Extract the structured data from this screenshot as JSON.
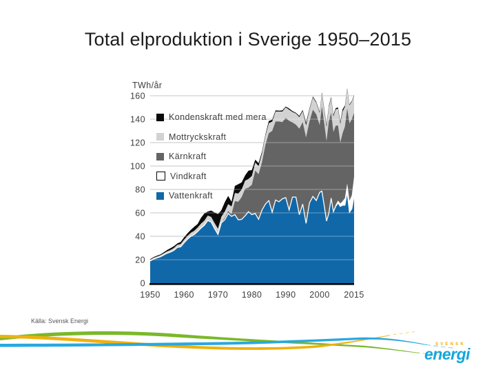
{
  "slide": {
    "title": "Total elproduktion i Sverige 1950–2015"
  },
  "source_note": "Källa: Svensk Energi",
  "logo": {
    "top": "SVENSK",
    "name": "energi"
  },
  "colors": {
    "gridline": "#a0a0a0",
    "axis_text": "#3d3d3d",
    "axis_line": "#000000",
    "title_text": "#1c1c1c",
    "source_text": "#555555",
    "wave_green": "#7ab829",
    "wave_yellow": "#eeb111",
    "wave_blue": "#29a8df",
    "logo_cyan": "#14a6dc",
    "logo_orange": "#f6a800"
  },
  "chart_data": {
    "type": "area",
    "stacked": true,
    "unit_label": "TWh/år",
    "ylim": [
      0,
      160
    ],
    "ytick_step": 20,
    "xticks": [
      1950,
      1960,
      1970,
      1980,
      1990,
      2000,
      2015
    ],
    "grid": true,
    "legend_position": "upper-left-inside",
    "legend_order_top_to_bottom": [
      "Kondenskraft med mera",
      "Mottryckskraft",
      "Kärnkraft",
      "Vindkraft",
      "Vattenkraft"
    ],
    "x": [
      1950,
      1951,
      1952,
      1953,
      1954,
      1955,
      1956,
      1957,
      1958,
      1959,
      1960,
      1961,
      1962,
      1963,
      1964,
      1965,
      1966,
      1967,
      1968,
      1969,
      1970,
      1971,
      1972,
      1973,
      1974,
      1975,
      1976,
      1977,
      1978,
      1979,
      1980,
      1981,
      1982,
      1983,
      1984,
      1985,
      1986,
      1987,
      1988,
      1989,
      1990,
      1991,
      1992,
      1993,
      1994,
      1995,
      1996,
      1997,
      1998,
      1999,
      2000,
      2001,
      2002,
      2003,
      2004,
      2005,
      2006,
      2007,
      2008,
      2009,
      2010,
      2011,
      2012,
      2013,
      2014,
      2015
    ],
    "series": [
      {
        "name": "Vattenkraft",
        "color": "#1168a8",
        "values": [
          18.9,
          20.5,
          21.5,
          22.5,
          24,
          25.5,
          26.5,
          28,
          30.5,
          31,
          34.5,
          37.5,
          40,
          41.5,
          44,
          47,
          49.5,
          53.5,
          52,
          46.5,
          41.5,
          51.5,
          54,
          59.5,
          57,
          58.5,
          54,
          54.5,
          57.5,
          61,
          58.5,
          59.5,
          54.5,
          62.5,
          67.5,
          70.5,
          60.5,
          71,
          69.5,
          72,
          73,
          62.5,
          73.5,
          73.5,
          58.5,
          67.5,
          51,
          68.5,
          74,
          70.5,
          77.5,
          78.5,
          66,
          53,
          59.5,
          72.5,
          61,
          65.5,
          68.5,
          65.5,
          66.5,
          66.5,
          78,
          60.5,
          63.5,
          74.5
        ]
      },
      {
        "name": "Vindkraft",
        "color": "#ffffff",
        "values": [
          0,
          0,
          0,
          0,
          0,
          0,
          0,
          0,
          0,
          0,
          0,
          0,
          0,
          0,
          0,
          0,
          0,
          0,
          0,
          0,
          0,
          0,
          0,
          0,
          0,
          0,
          0,
          0,
          0,
          0,
          0,
          0,
          0,
          0,
          0,
          0,
          0,
          0,
          0,
          0,
          0.1,
          0.1,
          0.2,
          0.3,
          0.3,
          0.4,
          0.4,
          0.5,
          0.6,
          0.6,
          0.5,
          0.5,
          0.6,
          0.7,
          0.9,
          0.9,
          1,
          1.4,
          2,
          2.5,
          3.5,
          6.1,
          7.2,
          9.9,
          11.5,
          16.3
        ]
      },
      {
        "name": "Kärnkraft",
        "color": "#646464",
        "values": [
          0,
          0,
          0,
          0,
          0,
          0,
          0,
          0,
          0,
          0,
          0,
          0,
          0,
          0,
          0,
          0,
          0,
          0,
          0,
          0,
          0,
          0,
          1.5,
          2,
          2,
          11.5,
          15.5,
          19,
          23,
          20.5,
          25.5,
          36.5,
          38.5,
          41,
          50.5,
          57.5,
          69.5,
          67,
          68.5,
          65.5,
          68,
          76,
          63.5,
          61.5,
          73,
          69.5,
          73,
          69,
          73.5,
          73,
          57,
          72,
          69.5,
          67.5,
          77.5,
          72,
          67,
          67.5,
          64,
          52,
          58,
          61,
          64,
          66,
          65,
          54.5
        ]
      },
      {
        "name": "Mottryckskraft",
        "color": "#d2d2d2",
        "values": [
          1,
          1.1,
          1.2,
          1.3,
          1.4,
          1.6,
          1.8,
          2,
          2.2,
          2.4,
          2.6,
          2.8,
          3,
          3.2,
          3.5,
          3.8,
          4,
          4.2,
          4.5,
          4.8,
          5,
          5.2,
          5.5,
          6,
          6.5,
          7,
          7,
          6.5,
          7,
          7.5,
          7.5,
          7,
          7,
          7.5,
          8,
          8.5,
          8,
          8.5,
          8.5,
          9,
          9,
          9.5,
          9,
          9.5,
          10,
          9.5,
          10.5,
          10,
          10.5,
          10,
          10.5,
          11,
          11.5,
          12.5,
          12.5,
          12.5,
          13.5,
          14,
          14.5,
          16,
          18.5,
          17,
          16.5,
          15.5,
          15,
          15
        ]
      },
      {
        "name": "Kondenskraft med mera",
        "color": "#0a0a0a",
        "values": [
          0.5,
          0.6,
          0.8,
          0.7,
          0.9,
          1.2,
          1.5,
          1.5,
          1.2,
          1.8,
          2,
          2.2,
          2.5,
          3.5,
          3,
          5,
          6,
          3.5,
          5.5,
          9,
          12.5,
          5.5,
          8,
          7,
          4,
          6,
          8,
          6,
          4.5,
          7,
          5,
          2.5,
          2.5,
          1.5,
          1,
          2,
          1.5,
          1,
          0.8,
          1,
          0.7,
          1,
          0.7,
          0.7,
          1,
          1,
          2,
          1,
          0.8,
          0.8,
          0.8,
          1,
          1.2,
          1.5,
          1,
          1,
          1.2,
          1,
          1,
          1.5,
          2,
          1,
          0.7,
          0.7,
          0.6,
          0.5
        ]
      }
    ]
  }
}
